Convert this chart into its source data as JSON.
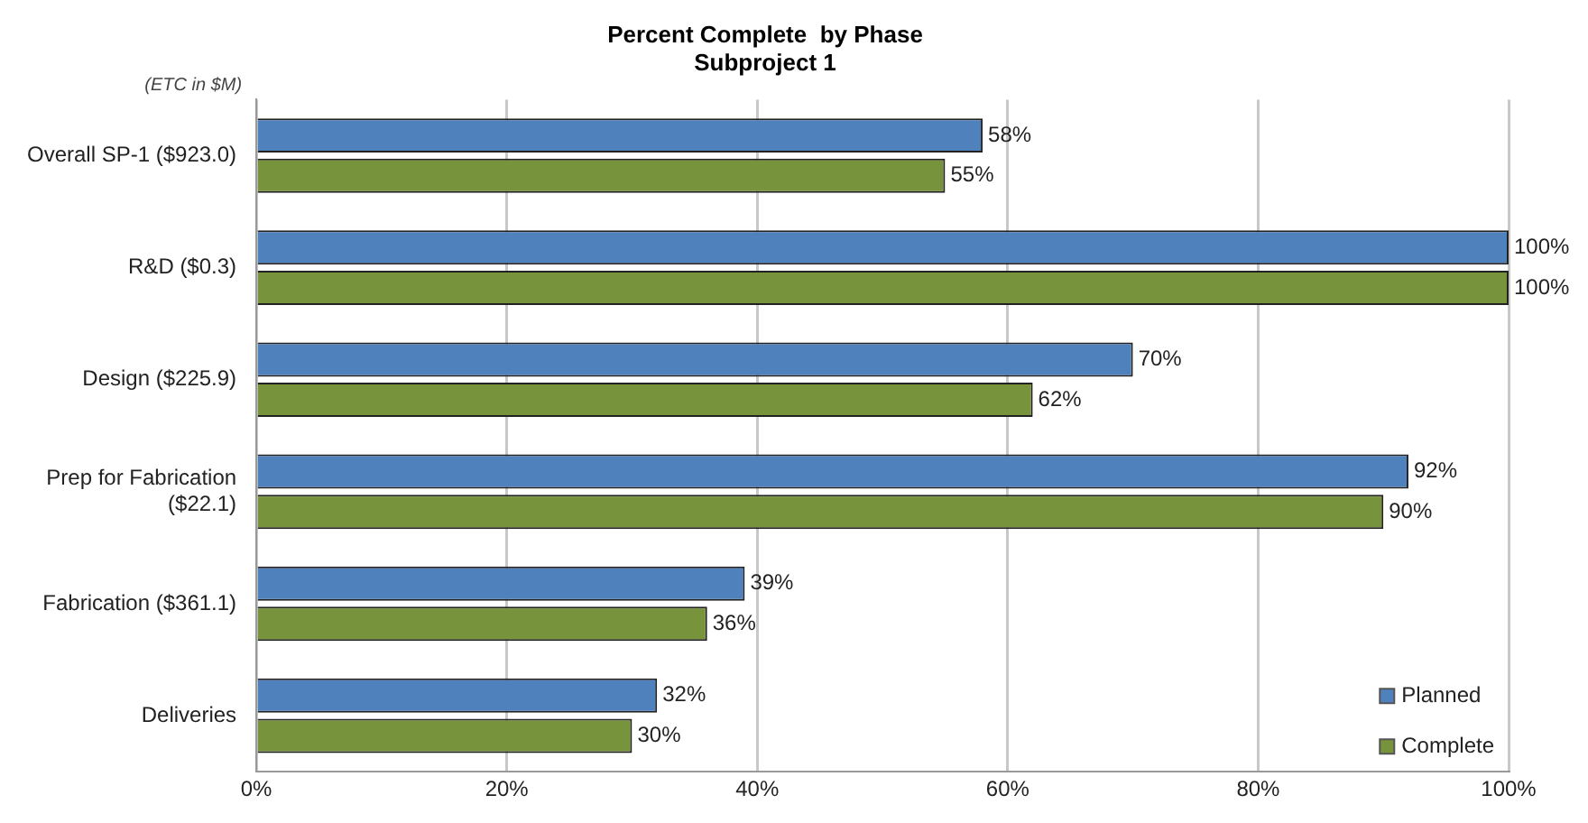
{
  "chart_data": {
    "type": "bar",
    "orientation": "horizontal",
    "title": "Percent Complete  by Phase",
    "subtitle": "Subproject 1",
    "annotations": [
      "(ETC in $M)"
    ],
    "categories": [
      "Overall SP-1 ($923.0)",
      "R&D ($0.3)",
      "Design ($225.9)",
      "Prep for Fabrication ($22.1)",
      "Fabrication ($361.1)",
      "Deliveries"
    ],
    "series": [
      {
        "name": "Planned",
        "color": "#4f81bd",
        "values": [
          58,
          100,
          70,
          92,
          39,
          32
        ],
        "value_labels": [
          "58%",
          "100%",
          "70%",
          "92%",
          "39%",
          "32%"
        ]
      },
      {
        "name": "Complete",
        "color": "#77933c",
        "values": [
          55,
          100,
          62,
          90,
          36,
          30
        ],
        "value_labels": [
          "55%",
          "100%",
          "62%",
          "90%",
          "36%",
          "30%"
        ]
      }
    ],
    "xlim": [
      0,
      100
    ],
    "xticks": [
      {
        "value": 0,
        "label": "0%"
      },
      {
        "value": 20,
        "label": "20%"
      },
      {
        "value": 40,
        "label": "40%"
      },
      {
        "value": 60,
        "label": "60%"
      },
      {
        "value": 80,
        "label": "80%"
      },
      {
        "value": 100,
        "label": "100%"
      }
    ],
    "grid": "x",
    "legend": "bottom right"
  }
}
